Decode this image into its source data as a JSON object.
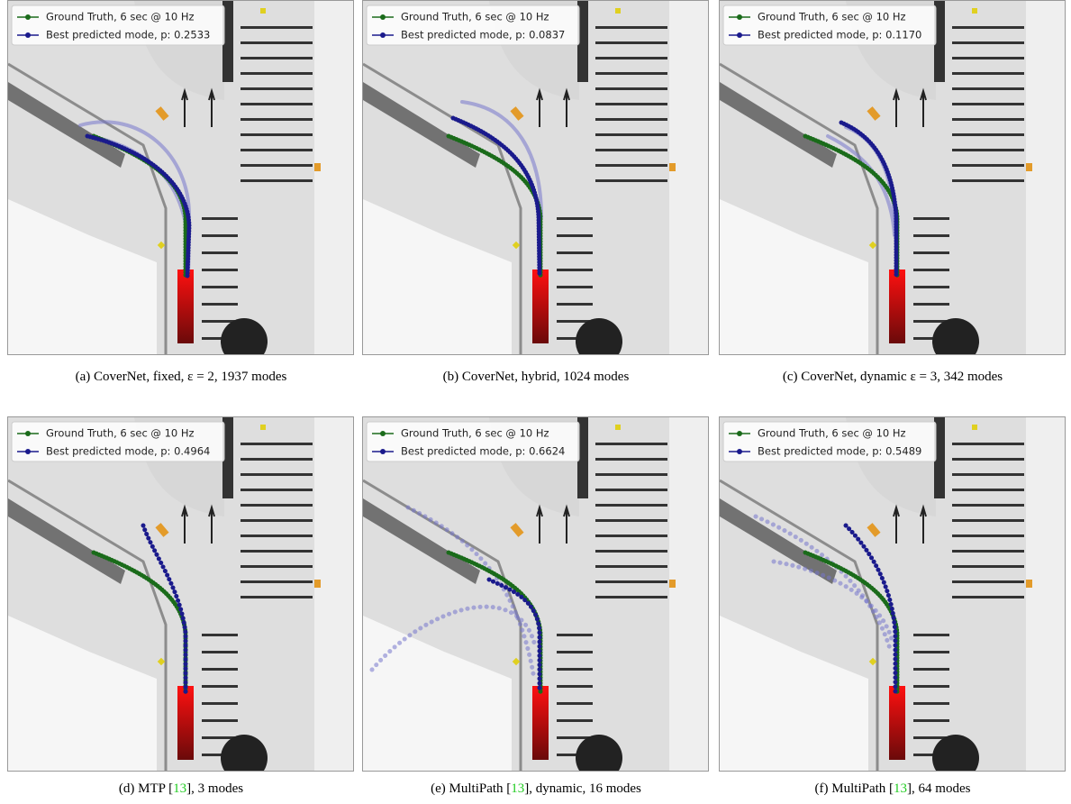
{
  "panels": [
    {
      "legend": {
        "ground_truth": "Ground Truth, 6 sec @ 10 Hz",
        "best_mode": "Best predicted mode, p: 0.2533"
      },
      "caption": {
        "text": "(a) CoverNet, fixed, ε = 2, 1937 modes"
      }
    },
    {
      "legend": {
        "ground_truth": "Ground Truth, 6 sec @ 10 Hz",
        "best_mode": "Best predicted mode, p: 0.0837"
      },
      "caption": {
        "text": "(b) CoverNet, hybrid, 1024 modes"
      }
    },
    {
      "legend": {
        "ground_truth": "Ground Truth, 6 sec @ 10 Hz",
        "best_mode": "Best predicted mode, p: 0.1170"
      },
      "caption": {
        "text": "(c) CoverNet, dynamic ε = 3, 342 modes"
      }
    },
    {
      "legend": {
        "ground_truth": "Ground Truth, 6 sec @ 10 Hz",
        "best_mode": "Best predicted mode, p: 0.4964"
      },
      "caption": {
        "before": "(d) MTP [",
        "cite": "13",
        "after": "], 3 modes"
      }
    },
    {
      "legend": {
        "ground_truth": "Ground Truth, 6 sec @ 10 Hz",
        "best_mode": "Best predicted mode, p: 0.6624"
      },
      "caption": {
        "before": "(e) MultiPath [",
        "cite": "13",
        "after": "], dynamic, 16 modes"
      }
    },
    {
      "legend": {
        "ground_truth": "Ground Truth, 6 sec @ 10 Hz",
        "best_mode": "Best predicted mode, p: 0.5489"
      },
      "caption": {
        "before": "(f) MultiPath [",
        "cite": "13",
        "after": "], 64 modes"
      }
    }
  ]
}
